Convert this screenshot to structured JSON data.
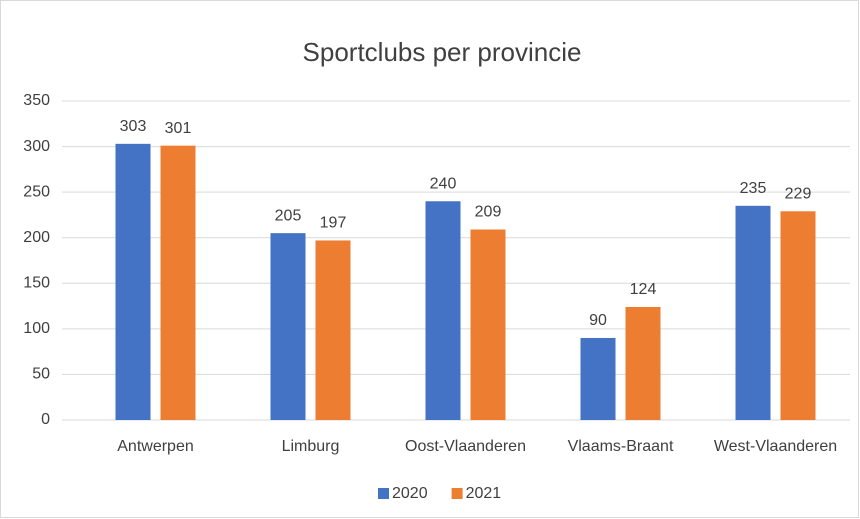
{
  "chart_data": {
    "type": "bar",
    "title": "Sportclubs per provincie",
    "categories": [
      "Antwerpen",
      "Limburg",
      "Oost-Vlaanderen",
      "Vlaams-Braant",
      "West-Vlaanderen"
    ],
    "series": [
      {
        "name": "2020",
        "color": "#4472c4",
        "values": [
          303,
          205,
          240,
          90,
          235
        ]
      },
      {
        "name": "2021",
        "color": "#ed7d31",
        "values": [
          301,
          197,
          209,
          124,
          229
        ]
      }
    ],
    "ylim": [
      0,
      350
    ],
    "yticks": [
      0,
      50,
      100,
      150,
      200,
      250,
      300,
      350
    ],
    "grid": true,
    "legend": "bottom"
  }
}
